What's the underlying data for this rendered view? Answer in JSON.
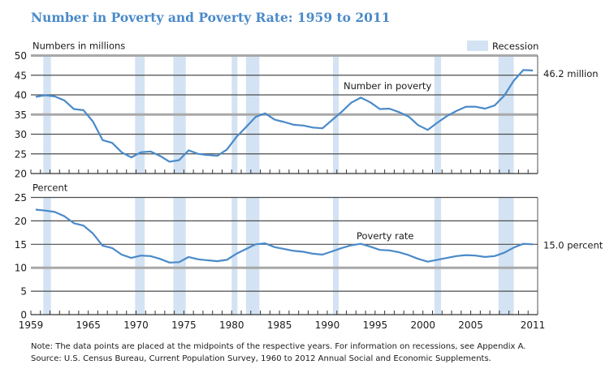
{
  "title": "Number in Poverty and Poverty Rate: 1959 to 2011",
  "notes": {
    "note": "Note: The data points are placed at the midpoints of the respective years. For information on recessions, see Appendix A.",
    "source": "Source: U.S. Census Bureau, Current Population Survey, 1960 to 2012 Annual Social and Economic Supplements."
  },
  "legend": {
    "label": "Recession",
    "color": "#d3e3f3"
  },
  "colors": {
    "line": "#4a8ac9",
    "recession": "#d3e3f3",
    "title": "#4a8ac9"
  },
  "chart_data": [
    {
      "type": "line",
      "title": "Number in Poverty",
      "ylabel": "Numbers in millions",
      "ylim": [
        20,
        50
      ],
      "yticks": [
        20,
        25,
        30,
        35,
        40,
        45,
        50
      ],
      "xlim": [
        1959,
        2011
      ],
      "series_label": "Number in poverty",
      "end_label": "46.2 million",
      "grid": true,
      "legend_position": "top-right",
      "recessions": [
        [
          1960.3,
          1961.1
        ],
        [
          1969.9,
          1970.9
        ],
        [
          1973.9,
          1975.2
        ],
        [
          1980.0,
          1980.6
        ],
        [
          1981.5,
          1982.9
        ],
        [
          1990.6,
          1991.2
        ],
        [
          2001.2,
          2001.9
        ],
        [
          2007.9,
          2009.5
        ]
      ],
      "x": [
        1959,
        1960,
        1961,
        1962,
        1963,
        1964,
        1965,
        1966,
        1967,
        1968,
        1969,
        1970,
        1971,
        1972,
        1973,
        1974,
        1975,
        1976,
        1977,
        1978,
        1979,
        1980,
        1981,
        1982,
        1983,
        1984,
        1985,
        1986,
        1987,
        1988,
        1989,
        1990,
        1991,
        1992,
        1993,
        1994,
        1995,
        1996,
        1997,
        1998,
        1999,
        2000,
        2001,
        2002,
        2003,
        2004,
        2005,
        2006,
        2007,
        2008,
        2009,
        2010,
        2011
      ],
      "values": [
        39.5,
        39.9,
        39.6,
        38.6,
        36.4,
        36.1,
        33.2,
        28.5,
        27.8,
        25.4,
        24.1,
        25.4,
        25.6,
        24.5,
        23.0,
        23.4,
        25.9,
        25.0,
        24.7,
        24.5,
        26.1,
        29.3,
        31.8,
        34.4,
        35.3,
        33.7,
        33.1,
        32.4,
        32.2,
        31.7,
        31.5,
        33.6,
        35.7,
        38.0,
        39.3,
        38.1,
        36.4,
        36.5,
        35.6,
        34.5,
        32.3,
        31.1,
        32.9,
        34.6,
        35.9,
        37.0,
        37.0,
        36.5,
        37.3,
        39.8,
        43.6,
        46.3,
        46.2
      ]
    },
    {
      "type": "line",
      "title": "Poverty Rate",
      "ylabel": "Percent",
      "ylim": [
        0,
        25
      ],
      "yticks": [
        0,
        5,
        10,
        15,
        20,
        25
      ],
      "xlim": [
        1959,
        2011
      ],
      "xtick_labels": [
        "1959",
        "1965",
        "1970",
        "1975",
        "1980",
        "1985",
        "1990",
        "1995",
        "2000",
        "2005",
        "2011"
      ],
      "xtick_years": [
        1959,
        1965,
        1970,
        1975,
        1980,
        1985,
        1990,
        1995,
        2000,
        2005,
        2011
      ],
      "series_label": "Poverty rate",
      "end_label": "15.0 percent",
      "grid": true,
      "recessions": [
        [
          1960.3,
          1961.1
        ],
        [
          1969.9,
          1970.9
        ],
        [
          1973.9,
          1975.2
        ],
        [
          1980.0,
          1980.6
        ],
        [
          1981.5,
          1982.9
        ],
        [
          1990.6,
          1991.2
        ],
        [
          2001.2,
          2001.9
        ],
        [
          2007.9,
          2009.5
        ]
      ],
      "x": [
        1959,
        1960,
        1961,
        1962,
        1963,
        1964,
        1965,
        1966,
        1967,
        1968,
        1969,
        1970,
        1971,
        1972,
        1973,
        1974,
        1975,
        1976,
        1977,
        1978,
        1979,
        1980,
        1981,
        1982,
        1983,
        1984,
        1985,
        1986,
        1987,
        1988,
        1989,
        1990,
        1991,
        1992,
        1993,
        1994,
        1995,
        1996,
        1997,
        1998,
        1999,
        2000,
        2001,
        2002,
        2003,
        2004,
        2005,
        2006,
        2007,
        2008,
        2009,
        2010,
        2011
      ],
      "values": [
        22.4,
        22.2,
        21.9,
        21.0,
        19.5,
        19.0,
        17.3,
        14.7,
        14.2,
        12.8,
        12.1,
        12.6,
        12.5,
        11.9,
        11.1,
        11.2,
        12.3,
        11.8,
        11.6,
        11.4,
        11.7,
        13.0,
        14.0,
        15.0,
        15.2,
        14.4,
        14.0,
        13.6,
        13.4,
        13.0,
        12.8,
        13.5,
        14.2,
        14.8,
        15.1,
        14.5,
        13.8,
        13.7,
        13.3,
        12.7,
        11.9,
        11.3,
        11.7,
        12.1,
        12.5,
        12.7,
        12.6,
        12.3,
        12.5,
        13.2,
        14.3,
        15.1,
        15.0
      ]
    }
  ]
}
